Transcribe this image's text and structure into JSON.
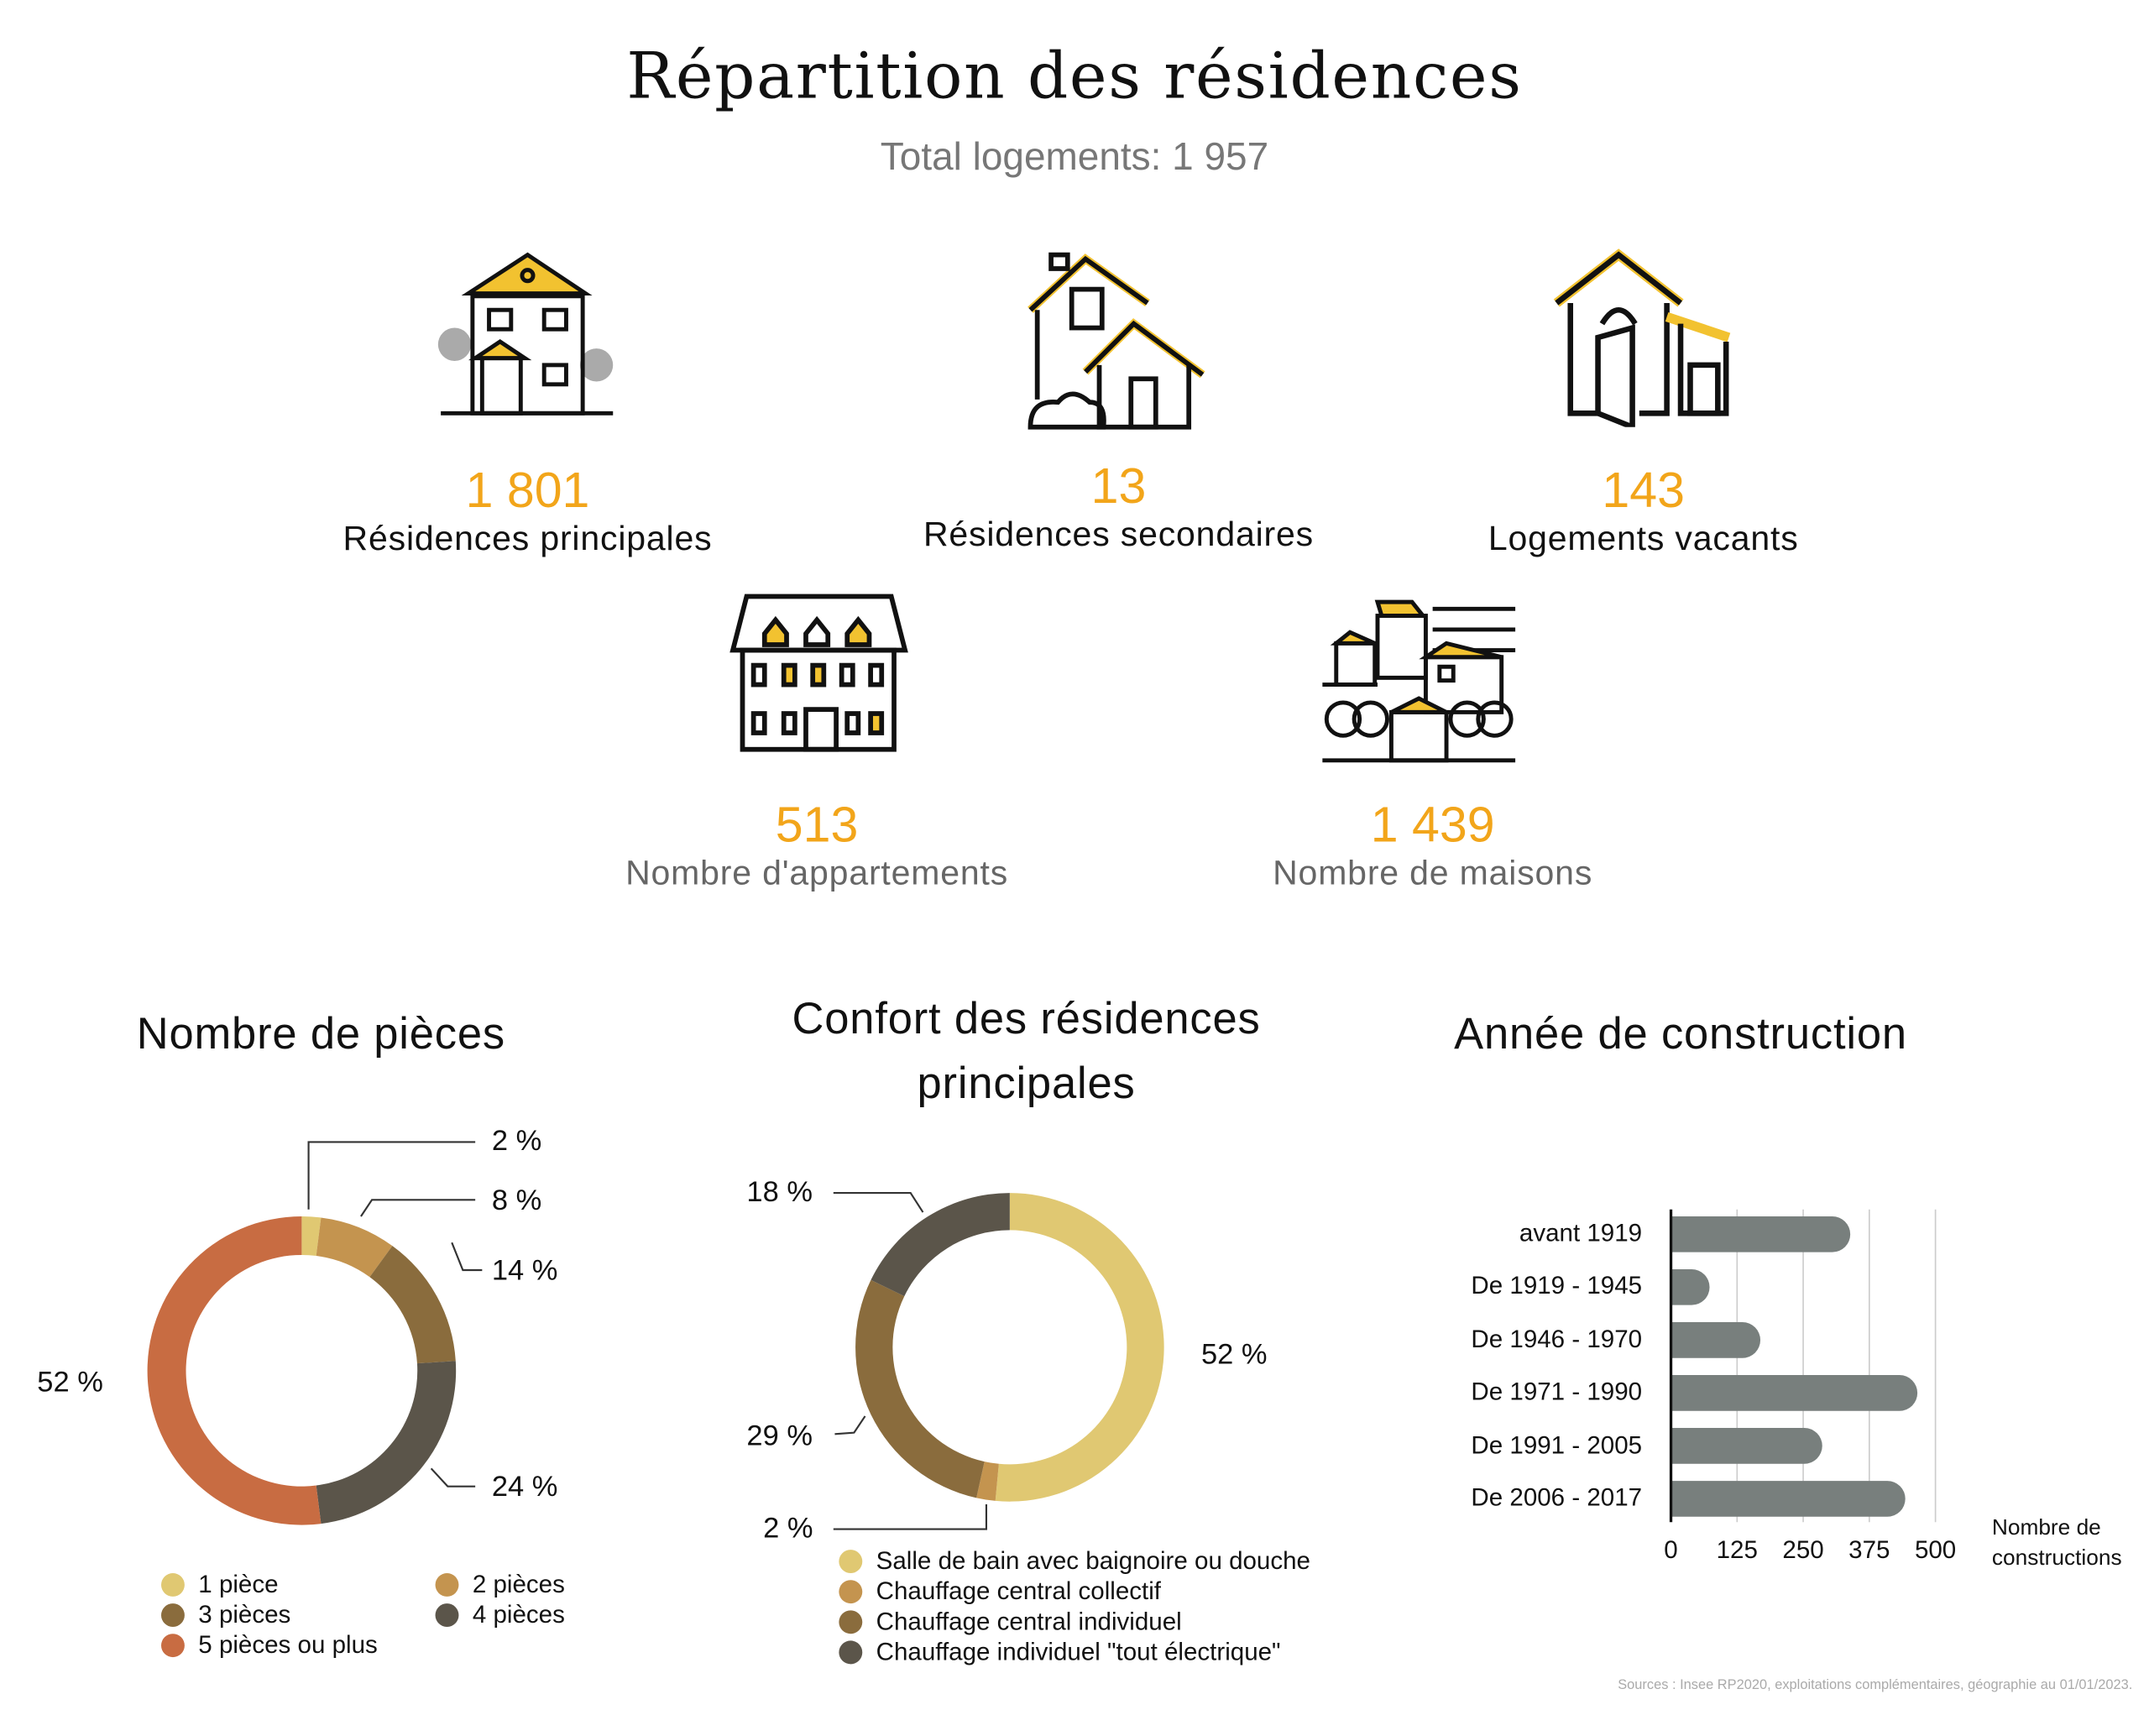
{
  "header": {
    "title": "Répartition des résidences",
    "subtitle": "Total logements: 1 957"
  },
  "stats": [
    {
      "value": "1 801",
      "label": "Résidences principales",
      "icon": "townhouse-icon"
    },
    {
      "value": "13",
      "label": "Résidences secondaires",
      "icon": "house-icon"
    },
    {
      "value": "143",
      "label": "Logements vacants",
      "icon": "house-open-door-icon"
    },
    {
      "value": "513",
      "label": "Nombre d'appartements",
      "icon": "apartment-building-icon"
    },
    {
      "value": "1 439",
      "label": "Nombre de maisons",
      "icon": "village-icon"
    }
  ],
  "colors": {
    "accent": "#f2a51a",
    "bar": "#787f7d"
  },
  "chart_data": [
    {
      "type": "pie",
      "title": "Nombre de pièces",
      "categories": [
        "1 pièce",
        "2 pièces",
        "3 pièces",
        "4 pièces",
        "5 pièces ou plus"
      ],
      "values": [
        2,
        8,
        14,
        24,
        52
      ],
      "labels": [
        "2 %",
        "8 %",
        "14 %",
        "24 %",
        "52 %"
      ],
      "colors": [
        "#e0c872",
        "#c4944f",
        "#8a6c3d",
        "#5b554a",
        "#c86c42"
      ]
    },
    {
      "type": "pie",
      "title": "Confort des résidences principales",
      "title_lines": [
        "Confort des résidences",
        "principales"
      ],
      "categories": [
        "Salle de bain avec baignoire ou douche",
        "Chauffage central collectif",
        "Chauffage central individuel",
        "Chauffage individuel \"tout électrique\""
      ],
      "values": [
        52,
        2,
        29,
        18
      ],
      "labels": [
        "52 %",
        "2 %",
        "29 %",
        "18 %"
      ],
      "colors": [
        "#e0c872",
        "#c4944f",
        "#8a6c3d",
        "#5b554a"
      ]
    },
    {
      "type": "bar",
      "orientation": "horizontal",
      "title": "Année de construction",
      "categories": [
        "avant 1919",
        "De 1919 - 1945",
        "De 1946 - 1970",
        "De 1971 - 1990",
        "De 1991 - 2005",
        "De 2006 - 2017"
      ],
      "values": [
        339,
        73,
        169,
        466,
        286,
        443
      ],
      "xticks": [
        "0",
        "125",
        "250",
        "375",
        "500"
      ],
      "xlim": [
        0,
        500
      ],
      "xlabel_lines": [
        "Nombre de",
        "constructions"
      ],
      "grid": true
    }
  ],
  "footer": {
    "sources": "Sources : Insee RP2020, exploitations complémentaires, géographie au 01/01/2023."
  }
}
